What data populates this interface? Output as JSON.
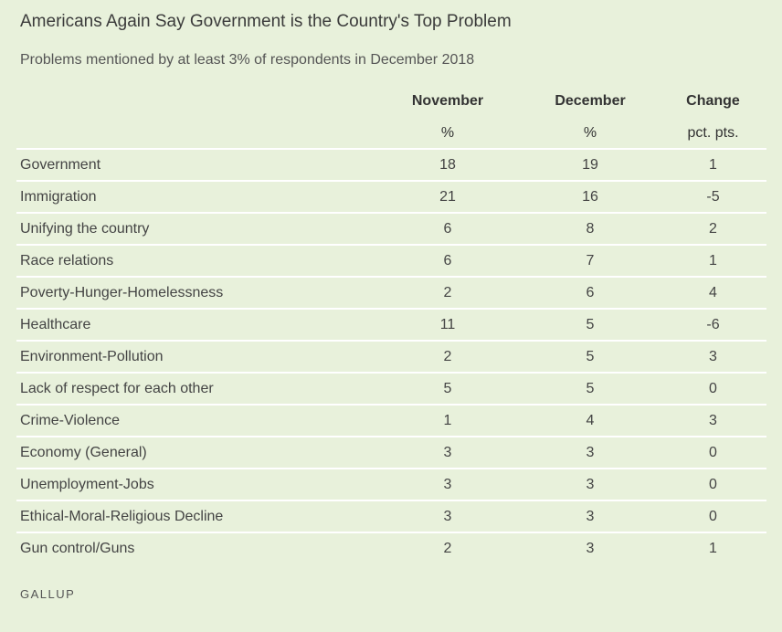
{
  "title": "Americans Again Say Government is the Country's Top Problem",
  "subtitle": "Problems mentioned by at least 3% of respondents in December 2018",
  "brand": "GALLUP",
  "chart_data": {
    "type": "table",
    "title": "Americans Again Say Government is the Country's Top Problem",
    "subtitle": "Problems mentioned by at least 3% of respondents in December 2018",
    "columns": [
      {
        "header": "November",
        "unit": "%"
      },
      {
        "header": "December",
        "unit": "%"
      },
      {
        "header": "Change",
        "unit": "pct. pts."
      }
    ],
    "rows": [
      {
        "label": "Government",
        "values": [
          "18",
          "19",
          "1"
        ]
      },
      {
        "label": "Immigration",
        "values": [
          "21",
          "16",
          "-5"
        ]
      },
      {
        "label": "Unifying the country",
        "values": [
          "6",
          "8",
          "2"
        ]
      },
      {
        "label": "Race relations",
        "values": [
          "6",
          "7",
          "1"
        ]
      },
      {
        "label": "Poverty-Hunger-Homelessness",
        "values": [
          "2",
          "6",
          "4"
        ]
      },
      {
        "label": "Healthcare",
        "values": [
          "11",
          "5",
          "-6"
        ]
      },
      {
        "label": "Environment-Pollution",
        "values": [
          "2",
          "5",
          "3"
        ]
      },
      {
        "label": "Lack of respect for each other",
        "values": [
          "5",
          "5",
          "0"
        ]
      },
      {
        "label": "Crime-Violence",
        "values": [
          "1",
          "4",
          "3"
        ]
      },
      {
        "label": "Economy (General)",
        "values": [
          "3",
          "3",
          "0"
        ]
      },
      {
        "label": "Unemployment-Jobs",
        "values": [
          "3",
          "3",
          "0"
        ]
      },
      {
        "label": "Ethical-Moral-Religious Decline",
        "values": [
          "3",
          "3",
          "0"
        ]
      },
      {
        "label": "Gun control/Guns",
        "values": [
          "2",
          "3",
          "1"
        ]
      }
    ]
  },
  "colors": {
    "background": "#e8f1db",
    "divider": "#ffffff",
    "text": "#444444"
  }
}
